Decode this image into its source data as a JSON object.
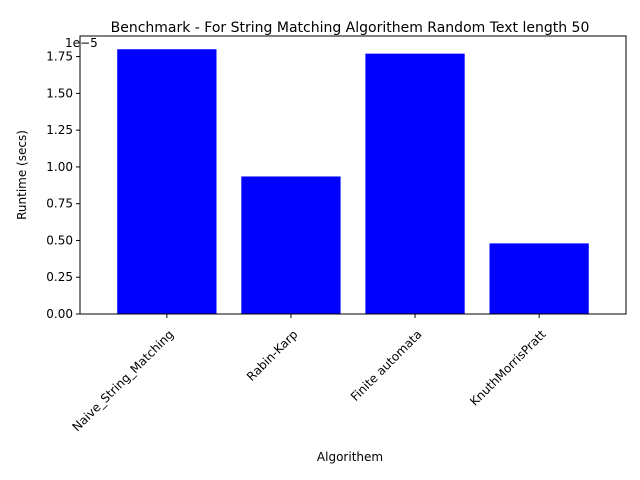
{
  "chart_data": {
    "type": "bar",
    "title": "Benchmark - For String Matching Algorithem Random Text length 50",
    "xlabel": "Algorithem",
    "ylabel": "Runtime (secs)",
    "offset_label": "1e−5",
    "categories": [
      "Naive_String_Matching",
      "Rabin-Karp",
      "Finite automata",
      "KnuthMorrisPratt"
    ],
    "values": [
      1.8e-05,
      9.35e-06,
      1.77e-05,
      4.8e-06
    ],
    "ylim": [
      0,
      1.89e-05
    ],
    "yticks": [
      0,
      2.5e-06,
      5e-06,
      7.5e-06,
      1e-05,
      1.25e-05,
      1.5e-05,
      1.75e-05
    ],
    "ytick_labels": [
      "0.00",
      "0.25",
      "0.50",
      "0.75",
      "1.00",
      "1.25",
      "1.50",
      "1.75"
    ],
    "bar_color": "#0000ff",
    "grid": false,
    "xtick_rotation": 45
  }
}
